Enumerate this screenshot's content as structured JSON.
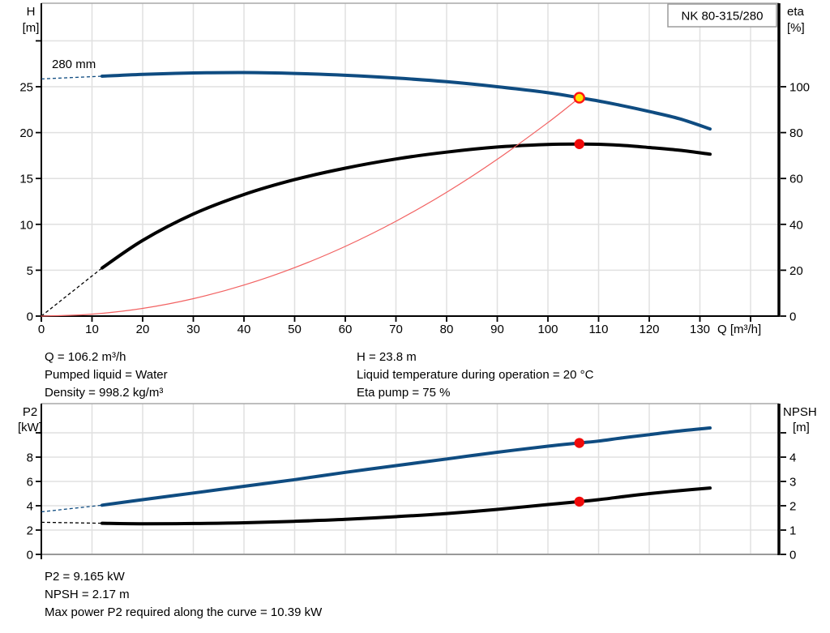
{
  "pump_model": "NK 80-315/280",
  "impeller_trim_label": "280 mm",
  "operating_point_info": {
    "q": "Q = 106.2 m³/h",
    "pumped_liquid": "Pumped liquid = Water",
    "density": "Density = 998.2 kg/m³",
    "h": "H = 23.8 m",
    "liquid_temp": "Liquid temperature during operation = 20 °C",
    "eta_pump": "Eta pump = 75 %"
  },
  "power_info": {
    "p2": "P2 = 9.165 kW",
    "npsh": "NPSH = 2.17 m",
    "max_power": "Max power P2 required along the curve = 10.39 kW"
  },
  "colors": {
    "curve_blue": "#0f4c81",
    "curve_black": "#000000",
    "system_red": "#f26262",
    "marker_red": "#f00a0a",
    "marker_yellow": "#ffe400",
    "marker_ring_red": "#ff1414",
    "grid": "#e0e0e0",
    "border_gray": "#a9a9a9",
    "bottom_axis_gray": "#999999"
  },
  "chart_data": [
    {
      "type": "line",
      "title": "NK 80-315/280",
      "x_axis": {
        "label": "Q [m³/h]",
        "min": 0,
        "max": 145.6,
        "tick_step": 10,
        "labeled_max": 130,
        "tick_max": 140
      },
      "left_axis": {
        "label_lines": [
          "H",
          "[m]"
        ],
        "labeled_ticks": [
          0,
          5,
          10,
          15,
          20,
          25
        ],
        "extra_ticks": [
          30
        ],
        "max": 34.1
      },
      "right_axis": {
        "label_lines": [
          "eta",
          "[%]"
        ],
        "labeled_ticks": [
          0,
          20,
          40,
          60,
          80,
          100
        ],
        "extra_ticks": [],
        "max": 136.4
      },
      "series": [
        {
          "name": "efficiency",
          "axis": "right",
          "color_key": "curve_black",
          "width": 4,
          "dashed_lead": [
            [
              0,
              0
            ],
            [
              12,
              21
            ]
          ],
          "points": [
            [
              12,
              21
            ],
            [
              20,
              33
            ],
            [
              30,
              44.5
            ],
            [
              40,
              53
            ],
            [
              50,
              59.5
            ],
            [
              60,
              64.5
            ],
            [
              70,
              68.5
            ],
            [
              80,
              71.5
            ],
            [
              90,
              73.7
            ],
            [
              100,
              74.8
            ],
            [
              106.2,
              75
            ],
            [
              110,
              74.9
            ],
            [
              115,
              74.4
            ],
            [
              120,
              73.5
            ],
            [
              126,
              72.3
            ],
            [
              132,
              70.6
            ]
          ]
        },
        {
          "name": "system-resistance",
          "axis": "left",
          "color_key": "system_red",
          "width": 1.2,
          "points": [
            [
              0,
              0
            ],
            [
              10,
              0.21
            ],
            [
              20,
              0.84
            ],
            [
              30,
              1.9
            ],
            [
              40,
              3.38
            ],
            [
              50,
              5.28
            ],
            [
              60,
              7.6
            ],
            [
              70,
              10.34
            ],
            [
              80,
              13.5
            ],
            [
              90,
              17.09
            ],
            [
              100,
              21.1
            ],
            [
              106.2,
              23.8
            ]
          ]
        },
        {
          "name": "head-280mm",
          "axis": "left",
          "color_key": "curve_blue",
          "width": 4,
          "dashed_lead": [
            [
              0,
              25.85
            ],
            [
              12,
              26.15
            ]
          ],
          "points": [
            [
              12,
              26.15
            ],
            [
              20,
              26.35
            ],
            [
              30,
              26.5
            ],
            [
              40,
              26.55
            ],
            [
              50,
              26.45
            ],
            [
              60,
              26.25
            ],
            [
              70,
              25.95
            ],
            [
              80,
              25.55
            ],
            [
              90,
              25.0
            ],
            [
              100,
              24.35
            ],
            [
              106.2,
              23.8
            ],
            [
              110,
              23.45
            ],
            [
              115,
              22.9
            ],
            [
              120,
              22.3
            ],
            [
              126,
              21.5
            ],
            [
              132,
              20.4
            ]
          ]
        }
      ],
      "markers": [
        {
          "name": "duty-point",
          "x": 106.2,
          "value": 23.8,
          "axis": "left",
          "style": "yellow"
        },
        {
          "name": "efficiency-point",
          "x": 106.2,
          "value": 75,
          "axis": "right",
          "style": "red"
        }
      ]
    },
    {
      "type": "line",
      "title": "",
      "x_axis": {
        "label": "",
        "min": 0,
        "max": 145.6,
        "tick_step": 10,
        "labeled_max": -1,
        "tick_max": -1
      },
      "left_axis": {
        "label_lines": [
          "P2",
          "[kW]"
        ],
        "labeled_ticks": [
          0,
          2,
          4,
          6,
          8
        ],
        "extra_ticks": [
          10
        ],
        "max": 12.4
      },
      "right_axis": {
        "label_lines": [
          "NPSH",
          "[m]"
        ],
        "labeled_ticks": [
          0,
          1,
          2,
          3,
          4
        ],
        "extra_ticks": [
          5
        ],
        "max": 6.2
      },
      "series": [
        {
          "name": "p2-power",
          "axis": "left",
          "color_key": "curve_blue",
          "width": 4,
          "dashed_lead": [
            [
              0,
              3.5
            ],
            [
              12,
              4.05
            ]
          ],
          "points": [
            [
              12,
              4.05
            ],
            [
              20,
              4.5
            ],
            [
              30,
              5.05
            ],
            [
              40,
              5.6
            ],
            [
              50,
              6.15
            ],
            [
              60,
              6.75
            ],
            [
              70,
              7.3
            ],
            [
              80,
              7.85
            ],
            [
              90,
              8.4
            ],
            [
              100,
              8.9
            ],
            [
              106.2,
              9.165
            ],
            [
              110,
              9.32
            ],
            [
              115,
              9.6
            ],
            [
              120,
              9.85
            ],
            [
              126,
              10.15
            ],
            [
              132,
              10.4
            ]
          ]
        },
        {
          "name": "npsh",
          "axis": "right",
          "color_key": "curve_black",
          "width": 4,
          "dashed_lead": [
            [
              0,
              1.32
            ],
            [
              12,
              1.28
            ]
          ],
          "points": [
            [
              12,
              1.28
            ],
            [
              20,
              1.26
            ],
            [
              30,
              1.27
            ],
            [
              40,
              1.3
            ],
            [
              50,
              1.36
            ],
            [
              60,
              1.44
            ],
            [
              70,
              1.55
            ],
            [
              80,
              1.68
            ],
            [
              90,
              1.85
            ],
            [
              100,
              2.05
            ],
            [
              106.2,
              2.17
            ],
            [
              110,
              2.25
            ],
            [
              115,
              2.38
            ],
            [
              120,
              2.5
            ],
            [
              126,
              2.62
            ],
            [
              132,
              2.73
            ]
          ]
        }
      ],
      "markers": [
        {
          "name": "p2-point",
          "x": 106.2,
          "value": 9.165,
          "axis": "left",
          "style": "red"
        },
        {
          "name": "npsh-point",
          "x": 106.2,
          "value": 2.17,
          "axis": "right",
          "style": "red"
        }
      ]
    }
  ]
}
